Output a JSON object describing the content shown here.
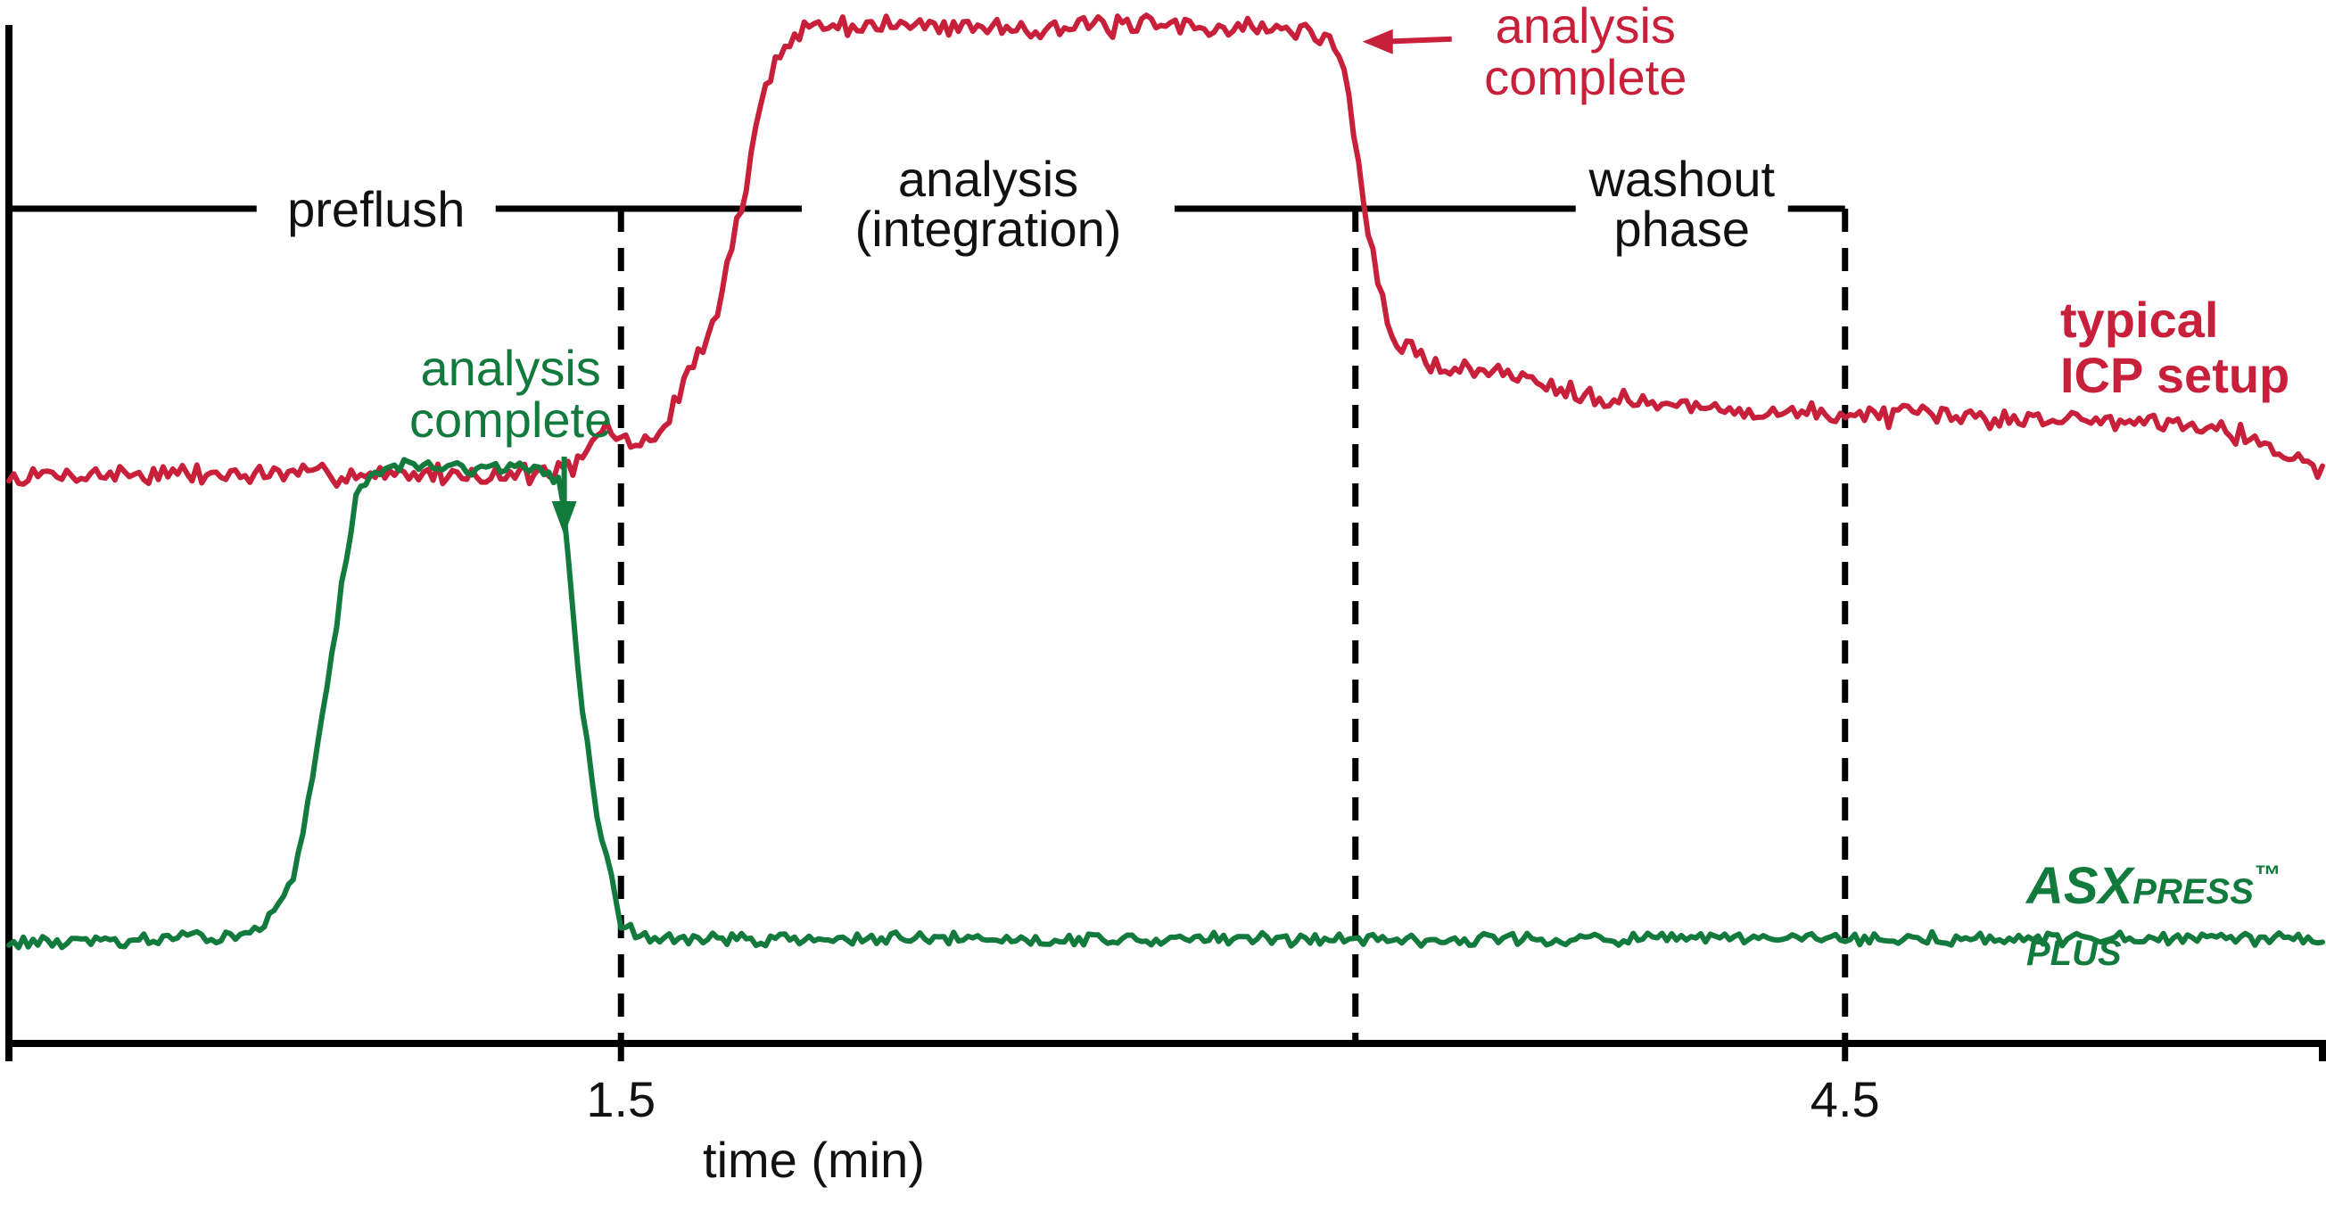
{
  "chart_data": {
    "type": "line",
    "x_unit": "min",
    "xlabel": "time (min)",
    "ylabel": "",
    "xlim": [
      0.0,
      5.67
    ],
    "ylim": [
      0,
      100
    ],
    "x_ticks": [
      {
        "value": 1.5,
        "label": "1.5"
      },
      {
        "value": 4.5,
        "label": "4.5"
      }
    ],
    "phases": {
      "level": 80,
      "boundaries": [
        1.5,
        3.3,
        4.5
      ],
      "labels": [
        {
          "lines": [
            "preflush"
          ],
          "x": 0.9
        },
        {
          "lines": [
            "analysis",
            "(integration)"
          ],
          "x": 2.4
        },
        {
          "lines": [
            "washout",
            "phase"
          ],
          "x": 4.1
        }
      ]
    },
    "series": [
      {
        "name": "typical ICP setup",
        "name_lines": [
          "typical",
          "ICP setup"
        ],
        "color": "#c8203a",
        "points": [
          [
            0.0,
            54
          ],
          [
            0.1,
            54.5
          ],
          [
            0.3,
            54.6
          ],
          [
            0.6,
            54.5
          ],
          [
            0.9,
            54.6
          ],
          [
            1.2,
            54.5
          ],
          [
            1.33,
            54.8
          ],
          [
            1.4,
            55.5
          ],
          [
            1.46,
            59
          ],
          [
            1.55,
            57
          ],
          [
            1.62,
            60
          ],
          [
            1.66,
            64
          ],
          [
            1.7,
            67
          ],
          [
            1.74,
            70
          ],
          [
            1.76,
            75
          ],
          [
            1.79,
            79
          ],
          [
            1.82,
            85
          ],
          [
            1.85,
            91
          ],
          [
            1.9,
            96
          ],
          [
            1.95,
            97.5
          ],
          [
            2.1,
            97.6
          ],
          [
            2.5,
            97.4
          ],
          [
            2.9,
            97.5
          ],
          [
            3.15,
            97.2
          ],
          [
            3.25,
            96
          ],
          [
            3.28,
            92
          ],
          [
            3.3,
            86
          ],
          [
            3.33,
            78
          ],
          [
            3.36,
            72
          ],
          [
            3.4,
            67
          ],
          [
            3.5,
            65
          ],
          [
            3.7,
            64
          ],
          [
            3.9,
            62
          ],
          [
            4.1,
            61
          ],
          [
            4.3,
            60.5
          ],
          [
            4.5,
            60.3
          ],
          [
            4.8,
            60
          ],
          [
            5.1,
            59.8
          ],
          [
            5.4,
            59.5
          ],
          [
            5.67,
            55
          ]
        ]
      },
      {
        "name": "ASXPRESS™ PLUS",
        "name_parts": [
          "ASX",
          "PRESS",
          "™",
          "PLUS"
        ],
        "color": "#127a3c",
        "points": [
          [
            0.0,
            9.7
          ],
          [
            0.3,
            9.8
          ],
          [
            0.5,
            10.2
          ],
          [
            0.6,
            10.8
          ],
          [
            0.65,
            12.5
          ],
          [
            0.7,
            16
          ],
          [
            0.73,
            22
          ],
          [
            0.76,
            30
          ],
          [
            0.8,
            39
          ],
          [
            0.82,
            45
          ],
          [
            0.85,
            52
          ],
          [
            0.88,
            54.5
          ],
          [
            0.93,
            55.4
          ],
          [
            1.1,
            55.2
          ],
          [
            1.3,
            55.0
          ],
          [
            1.35,
            54
          ],
          [
            1.37,
            47
          ],
          [
            1.4,
            34
          ],
          [
            1.44,
            22
          ],
          [
            1.48,
            15
          ],
          [
            1.5,
            11.5
          ],
          [
            1.55,
            10.2
          ],
          [
            1.7,
            10
          ],
          [
            2.5,
            10
          ],
          [
            3.5,
            10
          ],
          [
            4.5,
            10
          ],
          [
            5.0,
            10
          ],
          [
            5.5,
            10
          ],
          [
            5.67,
            9.8
          ]
        ]
      }
    ],
    "annotations": [
      {
        "series": "typical ICP setup",
        "lines": [
          "analysis",
          "complete"
        ],
        "x": 3.3
      },
      {
        "series": "ASXPRESS™ PLUS",
        "lines": [
          "analysis",
          "complete"
        ],
        "x": 1.35
      }
    ]
  }
}
